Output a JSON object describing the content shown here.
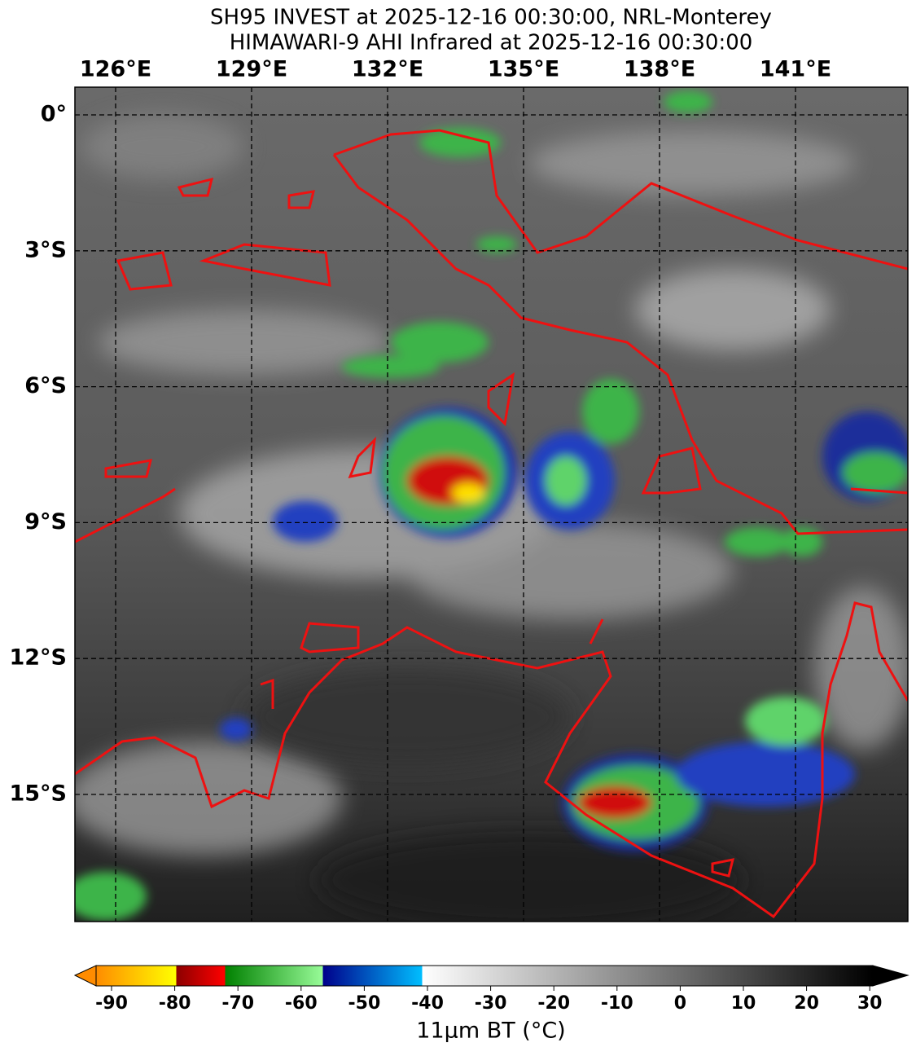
{
  "header": {
    "title_lines": [
      "SH95 INVEST at 2025-12-16 00:30:00, NRL-Monterey",
      "HIMAWARI-9 AHI Infrared at 2025-12-16 00:30:00"
    ]
  },
  "map": {
    "longitude_labels": [
      "126°E",
      "129°E",
      "132°E",
      "135°E",
      "138°E",
      "141°E"
    ],
    "latitude_labels": [
      "0°",
      "3°S",
      "6°S",
      "9°S",
      "12°S",
      "15°S"
    ]
  },
  "colorbar": {
    "ticks": [
      -90,
      -80,
      -70,
      -60,
      -50,
      -40,
      -30,
      -20,
      -10,
      0,
      10,
      20,
      30
    ],
    "label": "11μm BT (°C)"
  }
}
